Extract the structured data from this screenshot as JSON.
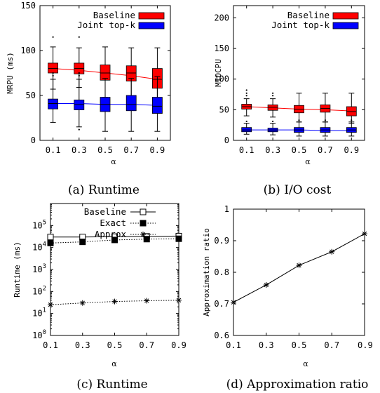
{
  "chart_data": [
    {
      "type": "box",
      "caption": "(a) Runtime",
      "ylabel": "MRPU (ms)",
      "xlabel": "α",
      "ylim": [
        0,
        150
      ],
      "yticks": [
        "0",
        "50",
        "100",
        "150"
      ],
      "categories": [
        "0.1",
        "0.3",
        "0.5",
        "0.7",
        "0.9"
      ],
      "x_ticks": [
        0.1,
        0.3,
        0.5,
        0.7,
        0.9
      ],
      "legend_position": "top-right",
      "series": [
        {
          "name": "Baseline",
          "color": "#ff0000",
          "boxes": [
            {
              "x": 0.1,
              "whisker_low": 57,
              "q1": 75,
              "median": 80,
              "q3": 86,
              "whisker_high": 104,
              "outliers": [
                115
              ]
            },
            {
              "x": 0.3,
              "whisker_low": 59,
              "q1": 74,
              "median": 80,
              "q3": 86,
              "whisker_high": 103,
              "outliers": [
                115
              ]
            },
            {
              "x": 0.5,
              "whisker_low": 48,
              "q1": 67,
              "median": 75,
              "q3": 84,
              "whisker_high": 104,
              "outliers": []
            },
            {
              "x": 0.7,
              "whisker_low": 46,
              "q1": 66,
              "median": 75,
              "q3": 83,
              "whisker_high": 103,
              "outliers": []
            },
            {
              "x": 0.9,
              "whisker_low": 37,
              "q1": 58,
              "median": 68,
              "q3": 80,
              "whisker_high": 103,
              "outliers": []
            }
          ],
          "trend": [
            80,
            78,
            75,
            72,
            68
          ]
        },
        {
          "name": "Joint top-k",
          "color": "#0000ff",
          "boxes": [
            {
              "x": 0.1,
              "whisker_low": 20,
              "q1": 35,
              "median": 41,
              "q3": 46,
              "whisker_high": 68,
              "outliers": [
                72,
                75
              ]
            },
            {
              "x": 0.3,
              "whisker_low": 15,
              "q1": 34,
              "median": 40,
              "q3": 45,
              "whisker_high": 68,
              "outliers": [
                12,
                72,
                75
              ]
            },
            {
              "x": 0.5,
              "whisker_low": 10,
              "q1": 32,
              "median": 40,
              "q3": 48,
              "whisker_high": 69,
              "outliers": []
            },
            {
              "x": 0.7,
              "whisker_low": 10,
              "q1": 33,
              "median": 40,
              "q3": 50,
              "whisker_high": 69,
              "outliers": []
            },
            {
              "x": 0.9,
              "whisker_low": 10,
              "q1": 30,
              "median": 38,
              "q3": 48,
              "whisker_high": 71,
              "outliers": []
            }
          ],
          "trend": [
            41,
            41,
            40,
            40,
            39
          ]
        }
      ]
    },
    {
      "type": "box",
      "caption": "(b) I/O cost",
      "ylabel": "MIOCPU",
      "xlabel": "α",
      "ylim": [
        0,
        220
      ],
      "yticks": [
        "0",
        "50",
        "100",
        "150",
        "200"
      ],
      "categories": [
        "0.1",
        "0.3",
        "0.5",
        "0.7",
        "0.9"
      ],
      "x_ticks": [
        0.1,
        0.3,
        0.5,
        0.7,
        0.9
      ],
      "legend_position": "top-right",
      "series": [
        {
          "name": "Baseline",
          "color": "#ff0000",
          "boxes": [
            {
              "x": 0.1,
              "whisker_low": 40,
              "q1": 51,
              "median": 55,
              "q3": 59,
              "whisker_high": 68,
              "outliers": [
                73,
                77,
                82
              ]
            },
            {
              "x": 0.3,
              "whisker_low": 38,
              "q1": 49,
              "median": 54,
              "q3": 58,
              "whisker_high": 68,
              "outliers": [
                73,
                77
              ]
            },
            {
              "x": 0.5,
              "whisker_low": 30,
              "q1": 45,
              "median": 51,
              "q3": 57,
              "whisker_high": 77,
              "outliers": []
            },
            {
              "x": 0.7,
              "whisker_low": 30,
              "q1": 46,
              "median": 52,
              "q3": 58,
              "whisker_high": 77,
              "outliers": []
            },
            {
              "x": 0.9,
              "whisker_low": 28,
              "q1": 40,
              "median": 47,
              "q3": 55,
              "whisker_high": 77,
              "outliers": []
            }
          ],
          "trend": [
            55,
            53,
            51,
            50,
            48
          ]
        },
        {
          "name": "Joint top-k",
          "color": "#0000ff",
          "boxes": [
            {
              "x": 0.1,
              "whisker_low": 10,
              "q1": 14,
              "median": 17,
              "q3": 21,
              "whisker_high": 28,
              "outliers": [
                31
              ]
            },
            {
              "x": 0.3,
              "whisker_low": 9,
              "q1": 14,
              "median": 17,
              "q3": 20,
              "whisker_high": 28,
              "outliers": [
                31
              ]
            },
            {
              "x": 0.5,
              "whisker_low": 7,
              "q1": 13,
              "median": 17,
              "q3": 21,
              "whisker_high": 30,
              "outliers": [
                33
              ]
            },
            {
              "x": 0.7,
              "whisker_low": 7,
              "q1": 13,
              "median": 17,
              "q3": 21,
              "whisker_high": 30,
              "outliers": [
                33
              ]
            },
            {
              "x": 0.9,
              "whisker_low": 7,
              "q1": 13,
              "median": 17,
              "q3": 21,
              "whisker_high": 30,
              "outliers": [
                33
              ]
            }
          ],
          "trend": [
            17,
            17,
            17,
            16,
            16
          ]
        }
      ]
    },
    {
      "type": "line",
      "caption": "(c) Runtime",
      "ylabel": "Runtime (ms)",
      "xlabel": "α",
      "y_scale": "log",
      "ylim": [
        1,
        1000000
      ],
      "yticks": [
        "10^0",
        "10^1",
        "10^2",
        "10^3",
        "10^4",
        "10^5"
      ],
      "xlim": [
        0.1,
        0.9
      ],
      "x_ticks": [
        0.1,
        0.3,
        0.5,
        0.7,
        0.9
      ],
      "x": [
        0.1,
        0.3,
        0.5,
        0.7,
        0.9
      ],
      "legend_position": "top",
      "series": [
        {
          "name": "Baseline",
          "marker": "open-square",
          "style": "solid",
          "values": [
            30000,
            30000,
            31000,
            32000,
            33000
          ]
        },
        {
          "name": "Exact",
          "marker": "filled-square",
          "style": "dotted",
          "values": [
            16000,
            18000,
            22000,
            24000,
            25000
          ]
        },
        {
          "name": "Approx",
          "marker": "asterisk",
          "style": "dotted",
          "values": [
            25,
            30,
            35,
            38,
            40
          ]
        }
      ]
    },
    {
      "type": "line",
      "caption": "(d) Approximation ratio",
      "ylabel": "Approximation ratio",
      "xlabel": "α",
      "ylim": [
        0.6,
        1.0
      ],
      "yticks": [
        "0.6",
        "0.7",
        "0.8",
        "0.9",
        "1"
      ],
      "xlim": [
        0.1,
        0.9
      ],
      "x_ticks": [
        0.1,
        0.3,
        0.5,
        0.7,
        0.9
      ],
      "x": [
        0.1,
        0.3,
        0.5,
        0.7,
        0.9
      ],
      "series": [
        {
          "marker": "asterisk",
          "style": "solid",
          "values": [
            0.705,
            0.76,
            0.822,
            0.865,
            0.922
          ]
        }
      ]
    }
  ]
}
